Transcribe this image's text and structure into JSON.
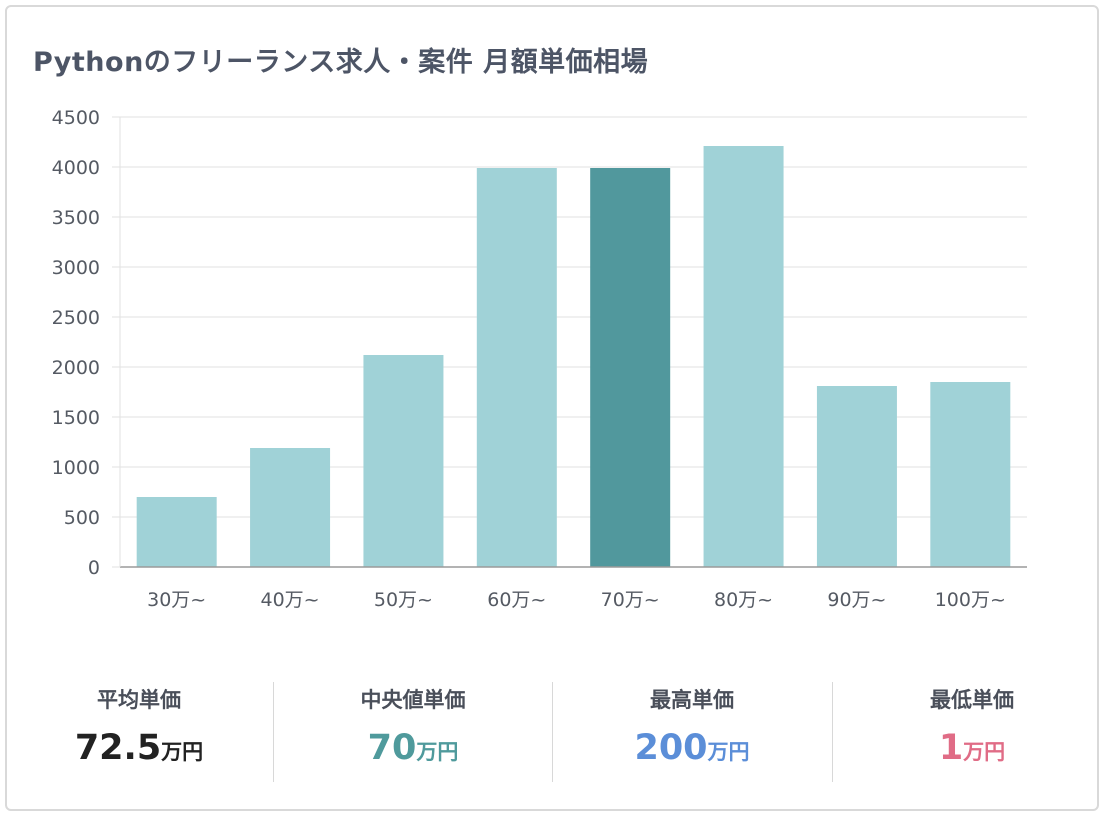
{
  "title": "Pythonのフリーランス求人・案件 月額単価相場",
  "chart_data": {
    "type": "bar",
    "categories": [
      "30万~",
      "40万~",
      "50万~",
      "60万~",
      "70万~",
      "80万~",
      "90万~",
      "100万~"
    ],
    "values": [
      700,
      1190,
      2120,
      3990,
      3990,
      4210,
      1810,
      1850
    ],
    "highlight_index": 4,
    "colors": {
      "bar": "#a0d2d7",
      "highlight": "#51989d",
      "grid": "#e2e2e2",
      "axis": "#9a9a9a"
    },
    "ylim": [
      0,
      4500
    ],
    "yticks": [
      0,
      500,
      1000,
      1500,
      2000,
      2500,
      3000,
      3500,
      4000,
      4500
    ],
    "grid": true
  },
  "stats": [
    {
      "label": "平均単価",
      "value": "72.5",
      "unit": "万円",
      "color": "#222222"
    },
    {
      "label": "中央値単価",
      "value": "70",
      "unit": "万円",
      "color": "#4f9a9c"
    },
    {
      "label": "最高単価",
      "value": "200",
      "unit": "万円",
      "color": "#5b8ed8"
    },
    {
      "label": "最低単価",
      "value": "1",
      "unit": "万円",
      "color": "#e06c86"
    }
  ]
}
